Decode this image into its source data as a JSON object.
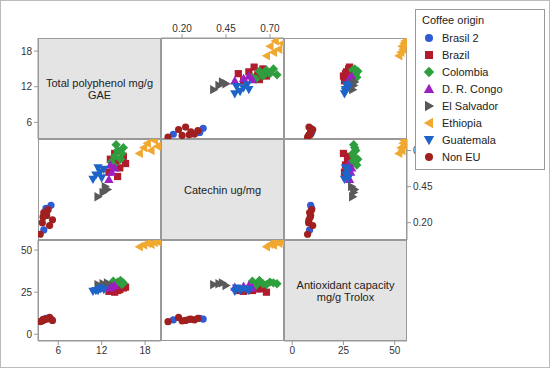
{
  "chart_data": {
    "type": "scatter_matrix",
    "legend_title": "Coffee origin",
    "legend": "right",
    "variables": [
      {
        "label": "Total polyphenol mg/g GAE",
        "lim": [
          3.2,
          20.2
        ],
        "ticks": [
          6,
          12,
          18
        ]
      },
      {
        "label": "Catechin ug/mg",
        "lim": [
          0.08,
          0.78
        ],
        "ticks": [
          {
            "value": 0.2,
            "label": "0.20"
          },
          0.45,
          {
            "value": 0.7,
            "label": "0.70"
          }
        ]
      },
      {
        "label": "Antioxidant capacity mg/g  Trolox",
        "lim": [
          -4,
          56
        ],
        "ticks": [
          0,
          25,
          50
        ]
      }
    ],
    "series": [
      {
        "name": "Brasil 2",
        "color": "#2f5bd3",
        "marker": "circle",
        "values": [
          [
            4.0,
            0.15,
            8.5
          ],
          [
            4.3,
            0.3,
            9.5
          ],
          [
            5.0,
            0.32,
            9.0
          ]
        ]
      },
      {
        "name": "Brazil",
        "color": "#b01c2e",
        "marker": "square",
        "values": [
          [
            13.0,
            0.55,
            25.5
          ],
          [
            13.5,
            0.6,
            26
          ],
          [
            14.0,
            0.63,
            27
          ],
          [
            14.5,
            0.58,
            26.5
          ],
          [
            15.0,
            0.66,
            27.5
          ],
          [
            13.8,
            0.68,
            25
          ],
          [
            14.2,
            0.52,
            26
          ],
          [
            15.3,
            0.61,
            28
          ],
          [
            13.2,
            0.64,
            27
          ]
        ]
      },
      {
        "name": "Colombia",
        "color": "#2e9e3e",
        "marker": "diamond",
        "values": [
          [
            13.3,
            0.62,
            29
          ],
          [
            13.8,
            0.66,
            30
          ],
          [
            14.2,
            0.7,
            31
          ],
          [
            14.6,
            0.64,
            32
          ],
          [
            15.0,
            0.72,
            30.5
          ],
          [
            13.6,
            0.6,
            31.5
          ],
          [
            14.8,
            0.68,
            29.5
          ],
          [
            14.0,
            0.74,
            30
          ]
        ]
      },
      {
        "name": "D. R. Congo",
        "color": "#9b1fc2",
        "marker": "triangle-up",
        "values": [
          [
            13.0,
            0.5,
            28
          ],
          [
            13.4,
            0.55,
            28.5
          ],
          [
            13.8,
            0.58,
            29
          ],
          [
            13.2,
            0.6,
            27.5
          ]
        ]
      },
      {
        "name": "El Salvador",
        "color": "#595959",
        "marker": "triangle-right",
        "values": [
          [
            11.5,
            0.38,
            29.5
          ],
          [
            12.2,
            0.41,
            30
          ],
          [
            12.8,
            0.43,
            30.5
          ],
          [
            12.5,
            0.45,
            29
          ]
        ]
      },
      {
        "name": "Ethiopia",
        "color": "#f0a830",
        "marker": "triangle-left",
        "values": [
          [
            17.2,
            0.68,
            52
          ],
          [
            17.8,
            0.72,
            53
          ],
          [
            18.3,
            0.75,
            54
          ],
          [
            18.8,
            0.7,
            53.5
          ],
          [
            19.3,
            0.77,
            54.5
          ],
          [
            19.7,
            0.73,
            55
          ]
        ]
      },
      {
        "name": "Guatemala",
        "color": "#1e64c8",
        "marker": "triangle-down",
        "values": [
          [
            10.8,
            0.5,
            25.5
          ],
          [
            11.2,
            0.53,
            26
          ],
          [
            11.8,
            0.55,
            27
          ],
          [
            12.3,
            0.57,
            26.5
          ],
          [
            12.0,
            0.51,
            27.5
          ],
          [
            11.5,
            0.58,
            26
          ]
        ]
      },
      {
        "name": "Non EU",
        "color": "#a01f1f",
        "marker": "circle",
        "values": [
          [
            3.5,
            0.12,
            7.5
          ],
          [
            3.8,
            0.2,
            8.0
          ],
          [
            4.0,
            0.27,
            8.5
          ],
          [
            4.4,
            0.25,
            9.0
          ],
          [
            4.6,
            0.29,
            9.5
          ],
          [
            5.2,
            0.22,
            8.2
          ],
          [
            4.8,
            0.18,
            10.0
          ],
          [
            3.9,
            0.24,
            8.8
          ]
        ]
      }
    ]
  }
}
